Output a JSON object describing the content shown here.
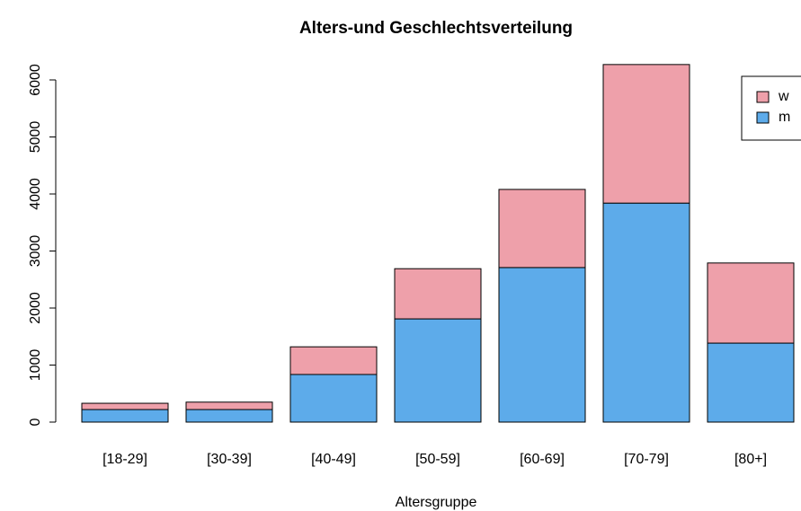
{
  "chart_data": {
    "type": "stacked_bar",
    "title": "Alters-und Geschlechtsverteilung",
    "x_label": "Altersgruppe",
    "categories": [
      "[18-29]",
      "[30-39]",
      "[40-49]",
      "[50-59]",
      "[60-69]",
      "[70-79]",
      "[80+]"
    ],
    "series": [
      {
        "name": "m",
        "color": "#5dabea",
        "values": [
          220,
          220,
          835,
          1810,
          2710,
          3840,
          1385
        ]
      },
      {
        "name": "w",
        "color": "#eea0aa",
        "values": [
          110,
          130,
          485,
          880,
          1370,
          2430,
          1405
        ]
      }
    ],
    "ylim": [
      0,
      6000
    ],
    "yticks": [
      0,
      1000,
      2000,
      3000,
      4000,
      5000,
      6000
    ],
    "legend": "top-right"
  }
}
